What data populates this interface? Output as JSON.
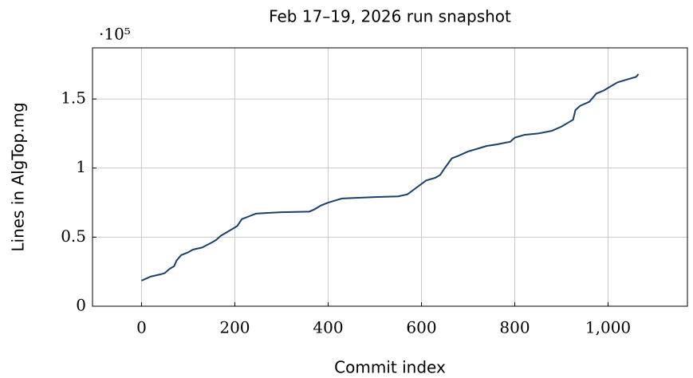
{
  "chart_data": {
    "type": "line",
    "title": "Feb 17–19, 2026 run snapshot",
    "xlabel": "Commit index",
    "ylabel": "Lines in AlgTop.mg",
    "y_multiplier": "·10⁵",
    "xlim": [
      -105,
      1170
    ],
    "ylim": [
      0,
      187000
    ],
    "xticks": [
      0,
      200,
      400,
      600,
      800,
      {
        "value": 1000,
        "label": "1,000"
      }
    ],
    "yticks": [
      0,
      {
        "value": 50000,
        "label": "0.5"
      },
      {
        "value": 100000,
        "label": "1"
      },
      {
        "value": 150000,
        "label": "1.5"
      }
    ],
    "grid": true,
    "series": [
      {
        "color": "#1a3f6b",
        "x": [
          0,
          10,
          20,
          40,
          50,
          60,
          70,
          75,
          85,
          100,
          110,
          130,
          150,
          160,
          170,
          190,
          205,
          215,
          230,
          245,
          270,
          300,
          360,
          370,
          385,
          400,
          420,
          430,
          500,
          550,
          570,
          590,
          610,
          630,
          640,
          650,
          665,
          680,
          700,
          720,
          740,
          760,
          790,
          800,
          820,
          850,
          880,
          900,
          915,
          925,
          930,
          940,
          960,
          975,
          990,
          1010,
          1020,
          1040,
          1060,
          1065
        ],
        "values": [
          18500,
          20000,
          21500,
          23000,
          24000,
          27000,
          29000,
          33000,
          37000,
          39000,
          41000,
          42500,
          46000,
          48000,
          51000,
          55000,
          58000,
          63000,
          65000,
          67000,
          67500,
          68000,
          68500,
          70000,
          73000,
          75000,
          77000,
          78000,
          79000,
          79500,
          81000,
          86000,
          91000,
          93000,
          95000,
          100000,
          107000,
          109000,
          112000,
          114000,
          116000,
          117000,
          119000,
          122000,
          124000,
          125000,
          127000,
          130000,
          133000,
          135000,
          142000,
          145000,
          148000,
          154000,
          156000,
          160000,
          162000,
          164000,
          166000,
          168000
        ]
      }
    ]
  }
}
